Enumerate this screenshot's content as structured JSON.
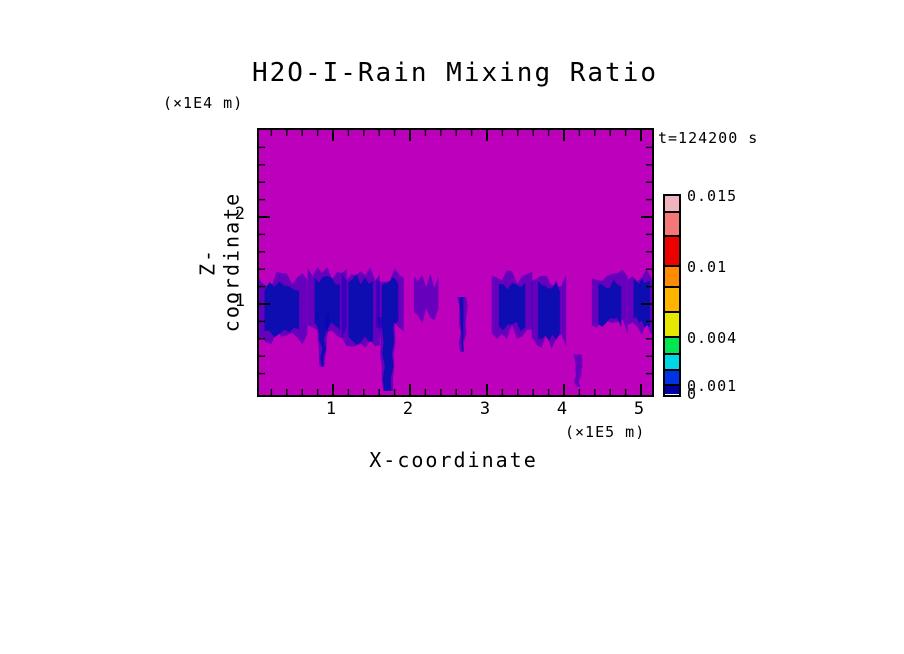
{
  "title": "H2O-I-Rain Mixing Ratio",
  "time_label": "t=124200 s",
  "axes": {
    "x": {
      "label": "X-coordinate",
      "unit": "(×1E5 m)",
      "major_ticks": [
        "1",
        "2",
        "3",
        "4",
        "5"
      ],
      "major_tick_values": [
        1,
        2,
        3,
        4,
        5
      ],
      "minor_step": 0.2,
      "range": [
        0,
        5.15
      ]
    },
    "z": {
      "label": "Z-coordinate",
      "unit": "(×1E4 m)",
      "major_ticks": [
        "1",
        "2"
      ],
      "major_tick_values": [
        1,
        2
      ],
      "minor_step": 0.2,
      "range": [
        0,
        3
      ]
    }
  },
  "colors": {
    "background_field": "#BC00BC",
    "rain_core": "#0D0DB2",
    "rain_fringe": "#0000BE",
    "frame": "#000000"
  },
  "colorbar": {
    "segments_bottom_to_top": [
      {
        "color": "#0000A5",
        "h": 8
      },
      {
        "color": "#0032E6",
        "h": 15
      },
      {
        "color": "#00D7E6",
        "h": 16
      },
      {
        "color": "#00E650",
        "h": 17
      },
      {
        "color": "#E6E600",
        "h": 25
      },
      {
        "color": "#FFB400",
        "h": 25
      },
      {
        "color": "#FF8C00",
        "h": 21
      },
      {
        "color": "#EE0000",
        "h": 30
      },
      {
        "color": "#F57878",
        "h": 24
      },
      {
        "color": "#F0B4BE",
        "h": 17
      }
    ],
    "labels": [
      {
        "text": "0",
        "boundary": 0
      },
      {
        "text": "0.001",
        "boundary": 1
      },
      {
        "text": "0.004",
        "boundary": 4
      },
      {
        "text": "0.01",
        "boundary": 7
      },
      {
        "text": "0.015",
        "boundary": 10
      }
    ]
  },
  "chart_data": {
    "type": "heatmap",
    "title": "H2O-I-Rain Mixing Ratio",
    "xlabel": "X-coordinate (×1E5 m)",
    "ylabel": "Z-coordinate (×1E4 m)",
    "annotation": "t=124200 s",
    "x_range": [
      0,
      5.15
    ],
    "z_range": [
      0,
      3
    ],
    "grid": false,
    "legend_position": "right-colorbar",
    "levels": [
      0,
      0.001,
      0.004,
      0.01,
      0.015
    ],
    "colorbar_colors_bottom_to_top": [
      "#0000A5",
      "#0032E6",
      "#00D7E6",
      "#00E650",
      "#E6E600",
      "#FFB400",
      "#FF8C00",
      "#EE0000",
      "#F57878",
      "#F0B4BE"
    ],
    "field_note": "Field is ~0 (magenta background color class) everywhere except rain cells near z=1",
    "features": [
      {
        "kind": "band",
        "x0": 0.04,
        "x1": 0.63,
        "z0": 0.67,
        "z1": 1.24
      },
      {
        "kind": "band",
        "x0": 0.71,
        "x1": 1.14,
        "z0": 0.72,
        "z1": 1.3
      },
      {
        "kind": "shaft",
        "x": 0.87,
        "z0": 0.28,
        "z1": 0.9,
        "w_top": 8,
        "w_tip": 2
      },
      {
        "kind": "band",
        "x0": 1.15,
        "x1": 1.57,
        "z0": 0.59,
        "z1": 1.31
      },
      {
        "kind": "band",
        "x0": 1.6,
        "x1": 1.88,
        "z0": 0.76,
        "z1": 1.28
      },
      {
        "kind": "shaft",
        "x": 1.71,
        "z0": 0.0,
        "z1": 0.85,
        "w_top": 12,
        "w_tip": 7
      },
      {
        "kind": "wisp",
        "x0": 2.09,
        "x1": 2.33,
        "z0": 0.91,
        "z1": 1.22
      },
      {
        "kind": "shaft",
        "x": 2.68,
        "z0": 0.45,
        "z1": 1.08,
        "w_top": 4,
        "w_tip": 1
      },
      {
        "kind": "band",
        "x0": 3.1,
        "x1": 3.55,
        "z0": 0.72,
        "z1": 1.26
      },
      {
        "kind": "band",
        "x0": 3.62,
        "x1": 3.99,
        "z0": 0.62,
        "z1": 1.22
      },
      {
        "kind": "faint_shaft",
        "x": 4.18,
        "z0": 0.05,
        "z1": 0.42,
        "w_top": 3,
        "w_tip": 1
      },
      {
        "kind": "band",
        "x0": 4.4,
        "x1": 4.79,
        "z0": 0.78,
        "z1": 1.26
      },
      {
        "kind": "band",
        "x0": 4.87,
        "x1": 5.15,
        "z0": 0.78,
        "z1": 1.28
      }
    ]
  }
}
